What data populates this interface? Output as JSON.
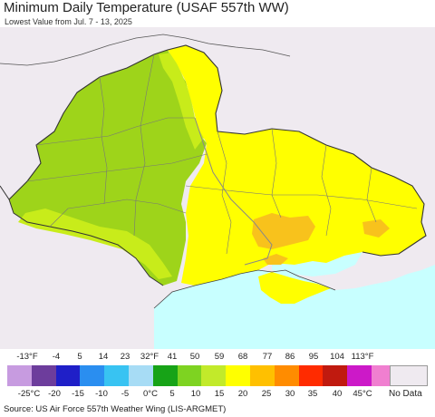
{
  "title": "Minimum Daily Temperature (USAF 557th WW)",
  "subtitle": "Lowest Value from Jul. 7 - 13, 2025",
  "legend": {
    "fahrenheit_labels": [
      "-13°F",
      "-4",
      "5",
      "14",
      "23",
      "32°F",
      "41",
      "50",
      "59",
      "68",
      "77",
      "86",
      "95",
      "104",
      "113°F"
    ],
    "celsius_labels": [
      "-25°C",
      "-20",
      "-15",
      "-10",
      "-5",
      "0°C",
      "5",
      "10",
      "15",
      "20",
      "25",
      "30",
      "35",
      "40",
      "45°C"
    ],
    "colors": [
      "#c79be0",
      "#6d3d9c",
      "#1f1fc8",
      "#2a8ef0",
      "#38c3f2",
      "#a7dcf5",
      "#17a317",
      "#7ed321",
      "#c2ea2a",
      "#ffff00",
      "#ffc000",
      "#ff8c00",
      "#ff2b00",
      "#c01a0f",
      "#cc19c8",
      "#f07fd0"
    ],
    "no_data_label": "No Data",
    "no_data_color": "#efeaf0"
  },
  "map_colors": {
    "sea": "#c8ffff",
    "outside": "#efeaf0",
    "green": "#9ed41a",
    "yellow_green": "#c8ec1a",
    "yellow": "#ffff00",
    "orange": "#f8c21c"
  },
  "source": "Source: US Air Force 557th Weather Wing (LIS-ARGMET)"
}
